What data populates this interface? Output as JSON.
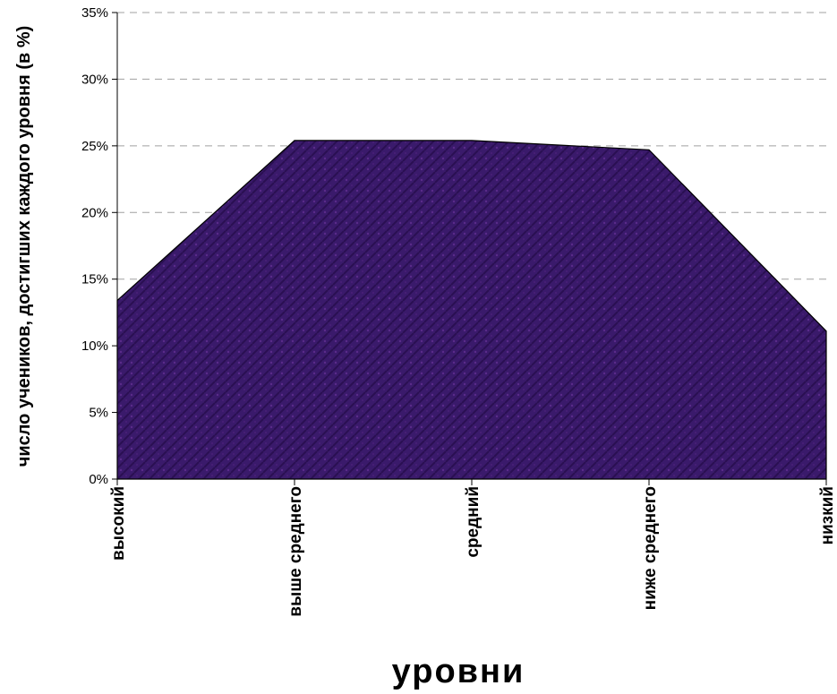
{
  "chart_data": {
    "type": "area",
    "categories": [
      "высокий",
      "выше среднего",
      "средний",
      "ниже среднего",
      "низкий"
    ],
    "series": [
      {
        "values": [
          13.4,
          25.4,
          25.4,
          24.7,
          11.1
        ]
      }
    ],
    "xlabel": "уровни",
    "ylabel": "число учеников, достигших каждого уровня (в %)",
    "ylim": [
      0,
      35
    ],
    "yticks": [
      0,
      5,
      10,
      15,
      20,
      25,
      30,
      35
    ],
    "ytick_suffix": "%",
    "grid": true,
    "fill_color": "#3a1a6b",
    "outline_color": "#000000"
  }
}
